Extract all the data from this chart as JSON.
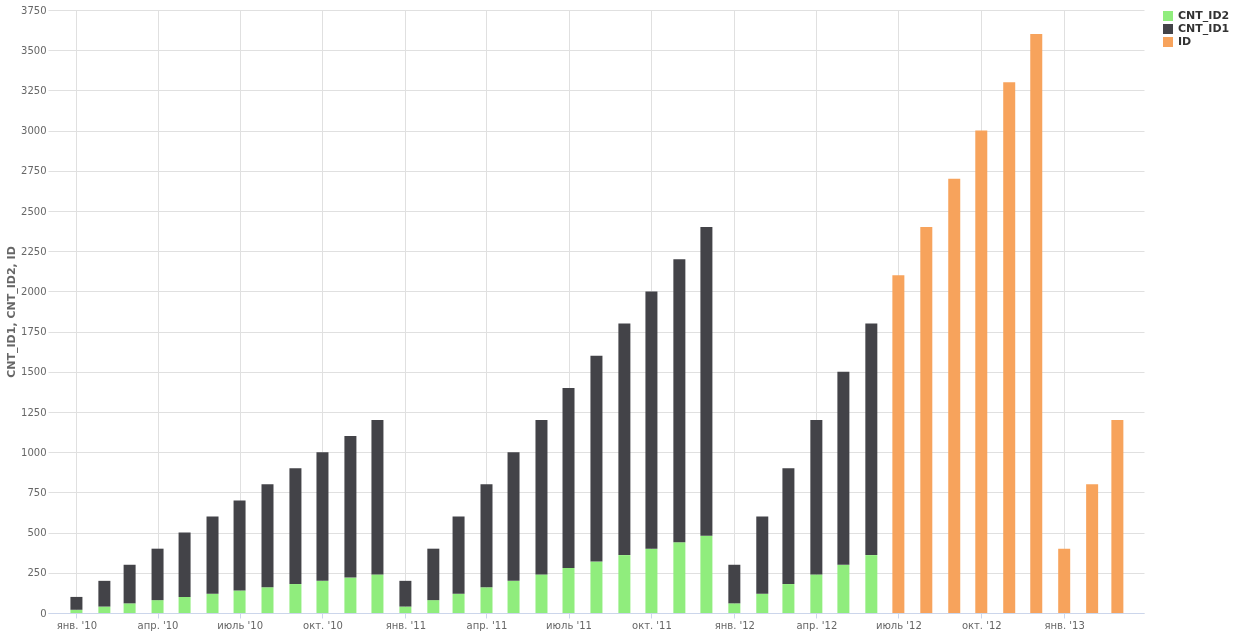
{
  "chart_data": {
    "type": "bar",
    "stacked": true,
    "ylabel": "CNT_ID1, CNT_ID2, ID",
    "x": [
      "2010-01",
      "2010-02",
      "2010-03",
      "2010-04",
      "2010-05",
      "2010-06",
      "2010-07",
      "2010-08",
      "2010-09",
      "2010-10",
      "2010-11",
      "2010-12",
      "2011-01",
      "2011-02",
      "2011-03",
      "2011-04",
      "2011-05",
      "2011-06",
      "2011-07",
      "2011-08",
      "2011-09",
      "2011-10",
      "2011-11",
      "2011-12",
      "2012-01",
      "2012-02",
      "2012-03",
      "2012-04",
      "2012-05",
      "2012-06",
      "2012-07",
      "2012-08",
      "2012-09",
      "2012-10",
      "2012-11",
      "2012-12",
      "2013-01",
      "2013-02",
      "2013-03"
    ],
    "series": [
      {
        "name": "CNT_ID2",
        "color": "#90ed7d",
        "values": [
          20,
          40,
          60,
          80,
          100,
          120,
          140,
          160,
          180,
          200,
          220,
          240,
          40,
          80,
          120,
          160,
          200,
          240,
          280,
          320,
          360,
          400,
          440,
          480,
          60,
          120,
          180,
          240,
          300,
          360,
          null,
          null,
          null,
          null,
          null,
          null,
          null,
          null,
          null
        ]
      },
      {
        "name": "CNT_ID1",
        "color": "#434348",
        "values": [
          80,
          160,
          240,
          320,
          400,
          480,
          560,
          640,
          720,
          800,
          880,
          960,
          160,
          320,
          480,
          640,
          800,
          960,
          1120,
          1280,
          1440,
          1600,
          1760,
          1920,
          240,
          480,
          720,
          960,
          1200,
          1440,
          null,
          null,
          null,
          null,
          null,
          null,
          null,
          null,
          null
        ]
      },
      {
        "name": "ID",
        "color": "#f7a35c",
        "values": [
          null,
          null,
          null,
          null,
          null,
          null,
          null,
          null,
          null,
          null,
          null,
          null,
          null,
          null,
          null,
          null,
          null,
          null,
          null,
          null,
          null,
          null,
          null,
          null,
          null,
          null,
          null,
          null,
          null,
          null,
          2100,
          2400,
          2700,
          3000,
          3300,
          3600,
          400,
          800,
          1200
        ]
      }
    ],
    "xlim": [
      "2009-12-06",
      "2013-03-25"
    ],
    "xticks": [
      {
        "value": "2010-01",
        "label": "янв. '10"
      },
      {
        "value": "2010-04",
        "label": "апр. '10"
      },
      {
        "value": "2010-07",
        "label": "июль '10"
      },
      {
        "value": "2010-10",
        "label": "окт. '10"
      },
      {
        "value": "2011-01",
        "label": "янв. '11"
      },
      {
        "value": "2011-04",
        "label": "апр. '11"
      },
      {
        "value": "2011-07",
        "label": "июль '11"
      },
      {
        "value": "2011-10",
        "label": "окт. '11"
      },
      {
        "value": "2012-01",
        "label": "янв. '12"
      },
      {
        "value": "2012-04",
        "label": "апр. '12"
      },
      {
        "value": "2012-07",
        "label": "июль '12"
      },
      {
        "value": "2012-10",
        "label": "окт. '12"
      },
      {
        "value": "2013-01",
        "label": "янв. '13"
      }
    ],
    "ylim": [
      0,
      3750
    ],
    "yticks": [
      0,
      250,
      500,
      750,
      1000,
      1250,
      1500,
      1750,
      2000,
      2250,
      2500,
      2750,
      3000,
      3250,
      3500,
      3750
    ],
    "grid": true,
    "legend": "right"
  }
}
